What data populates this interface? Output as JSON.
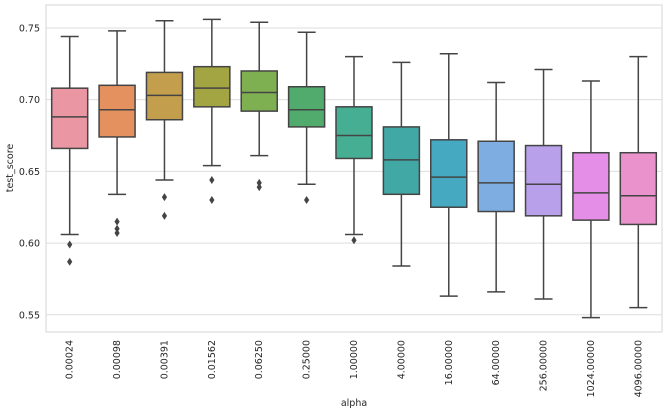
{
  "chart_data": {
    "type": "box",
    "xlabel": "alpha",
    "ylabel": "test_score",
    "ylim": [
      0.538,
      0.766
    ],
    "yticks": [
      0.55,
      0.6,
      0.65,
      0.7,
      0.75
    ],
    "ytick_labels": [
      "0.55",
      "0.60",
      "0.65",
      "0.70",
      "0.75"
    ],
    "grid": true,
    "categories": [
      "0.00024",
      "0.00098",
      "0.00391",
      "0.01562",
      "0.06250",
      "0.25000",
      "1.00000",
      "4.00000",
      "16.00000",
      "64.00000",
      "256.00000",
      "1024.00000",
      "4096.00000"
    ],
    "colors": [
      "#ea96a3",
      "#e4915f",
      "#c39e4c",
      "#a2a542",
      "#7eaf51",
      "#50ab6c",
      "#46ae92",
      "#42a8a5",
      "#45a9c1",
      "#7eaee1",
      "#b9a0ea",
      "#e48ee7",
      "#ea92cc"
    ],
    "boxes": [
      {
        "whisker_low": 0.606,
        "q1": 0.666,
        "median": 0.688,
        "q3": 0.708,
        "whisker_high": 0.744,
        "outliers": [
          0.599,
          0.587
        ]
      },
      {
        "whisker_low": 0.634,
        "q1": 0.674,
        "median": 0.693,
        "q3": 0.71,
        "whisker_high": 0.748,
        "outliers": [
          0.615,
          0.61,
          0.607
        ]
      },
      {
        "whisker_low": 0.644,
        "q1": 0.686,
        "median": 0.703,
        "q3": 0.719,
        "whisker_high": 0.755,
        "outliers": [
          0.632,
          0.619
        ]
      },
      {
        "whisker_low": 0.654,
        "q1": 0.695,
        "median": 0.708,
        "q3": 0.723,
        "whisker_high": 0.756,
        "outliers": [
          0.644,
          0.63
        ]
      },
      {
        "whisker_low": 0.661,
        "q1": 0.692,
        "median": 0.705,
        "q3": 0.72,
        "whisker_high": 0.754,
        "outliers": [
          0.642,
          0.639
        ]
      },
      {
        "whisker_low": 0.641,
        "q1": 0.681,
        "median": 0.693,
        "q3": 0.709,
        "whisker_high": 0.747,
        "outliers": [
          0.63
        ]
      },
      {
        "whisker_low": 0.606,
        "q1": 0.659,
        "median": 0.675,
        "q3": 0.695,
        "whisker_high": 0.73,
        "outliers": [
          0.602
        ]
      },
      {
        "whisker_low": 0.584,
        "q1": 0.634,
        "median": 0.658,
        "q3": 0.681,
        "whisker_high": 0.726,
        "outliers": []
      },
      {
        "whisker_low": 0.563,
        "q1": 0.625,
        "median": 0.646,
        "q3": 0.672,
        "whisker_high": 0.732,
        "outliers": []
      },
      {
        "whisker_low": 0.566,
        "q1": 0.622,
        "median": 0.642,
        "q3": 0.671,
        "whisker_high": 0.712,
        "outliers": []
      },
      {
        "whisker_low": 0.561,
        "q1": 0.619,
        "median": 0.641,
        "q3": 0.668,
        "whisker_high": 0.721,
        "outliers": []
      },
      {
        "whisker_low": 0.548,
        "q1": 0.616,
        "median": 0.635,
        "q3": 0.663,
        "whisker_high": 0.713,
        "outliers": []
      },
      {
        "whisker_low": 0.555,
        "q1": 0.613,
        "median": 0.633,
        "q3": 0.663,
        "whisker_high": 0.73,
        "outliers": []
      }
    ]
  }
}
